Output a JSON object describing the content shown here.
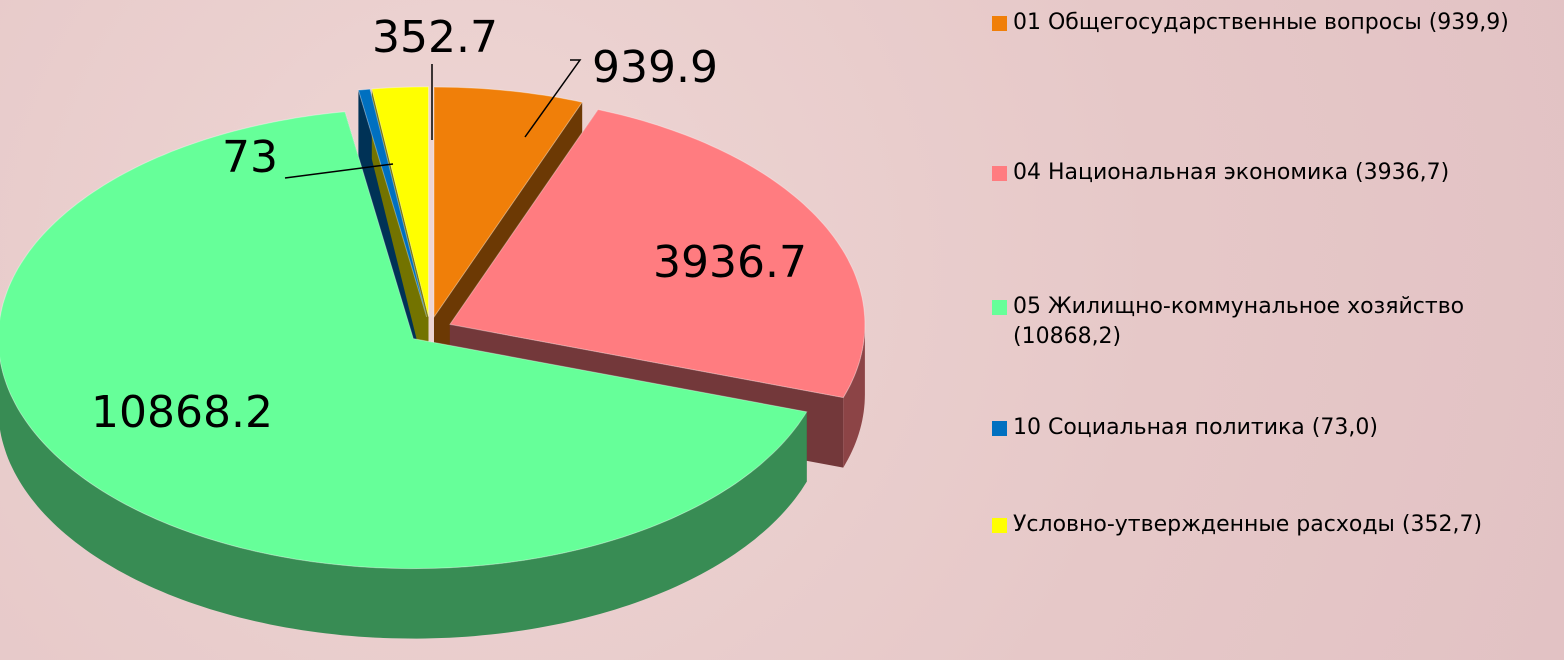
{
  "chart_data": {
    "type": "pie",
    "categories": [
      "01 Общегосударственные вопросы (939,9)",
      "04 Национальная экономика (3936,7)",
      "05 Жилищно-коммунальное хозяйство (10868,2)",
      "10 Социальная политика (73,0)",
      "Условно-утвержденные расходы (352,7)"
    ],
    "values": [
      939.9,
      3936.7,
      10868.2,
      73,
      352.7
    ],
    "colors": [
      "#f07f09",
      "#ff7c80",
      "#66ff99",
      "#0070c0",
      "#ffff00"
    ],
    "legend": "right"
  }
}
